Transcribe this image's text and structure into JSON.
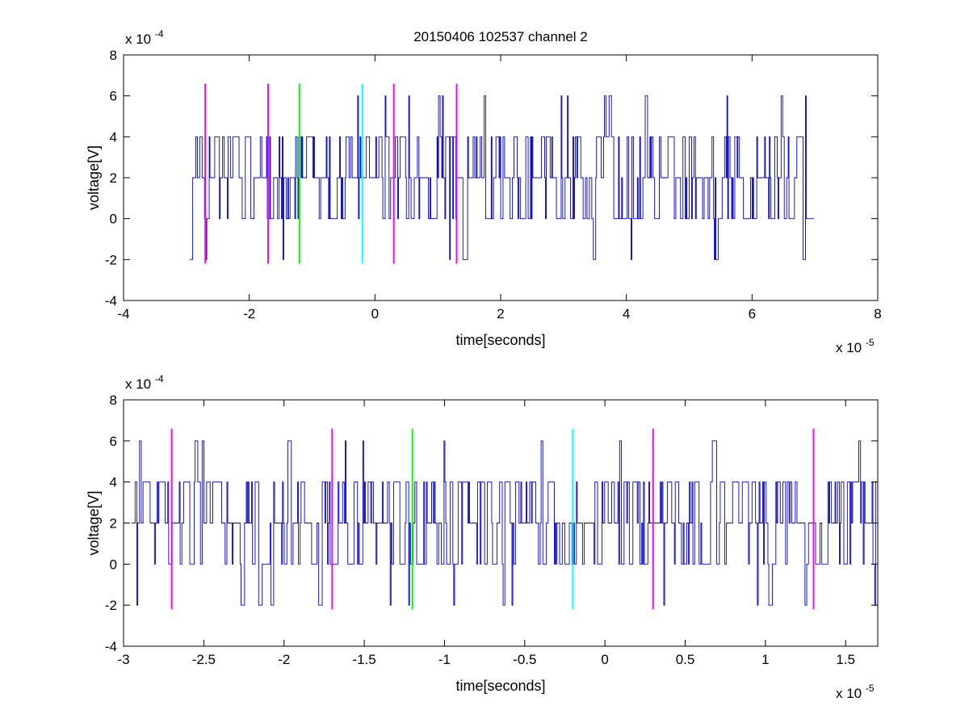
{
  "title": "20150406 102537 channel 2",
  "colors": {
    "signal": "#0000cc",
    "marker_magenta": "#ff00ff",
    "marker_green": "#00ff00",
    "marker_cyan": "#00ffff",
    "axes": "#000000",
    "background": "#ffffff"
  },
  "chart_data": [
    {
      "type": "line",
      "title": "20150406 102537 channel 2",
      "xlabel": "time[seconds]",
      "ylabel": "voltage[V]",
      "x_multiplier": "x 10",
      "x_multiplier_exp": "-5",
      "y_multiplier": "x 10",
      "y_multiplier_exp": "-4",
      "xlim": [
        -4,
        8
      ],
      "ylim": [
        -4,
        8
      ],
      "xticks": [
        -4,
        -2,
        0,
        2,
        4,
        6,
        8
      ],
      "xtick_labels": [
        "-4",
        "-2",
        "0",
        "2",
        "4",
        "6",
        "8"
      ],
      "yticks": [
        -4,
        -2,
        0,
        2,
        4,
        6,
        8
      ],
      "ytick_labels": [
        "-4",
        "-2",
        "0",
        "2",
        "4",
        "6",
        "8"
      ],
      "grid": false,
      "series": [
        {
          "kind": "dense_quantized_signal",
          "x_range": [
            -2.95,
            7.0
          ],
          "levels": [
            -2,
            0,
            2,
            4,
            6
          ],
          "baseline": 2
        }
      ],
      "markers": [
        {
          "x": -2.7,
          "y_range": [
            -2.2,
            6.6
          ],
          "color": "marker_magenta"
        },
        {
          "x": -1.7,
          "y_range": [
            -2.2,
            6.6
          ],
          "color": "marker_magenta"
        },
        {
          "x": -1.2,
          "y_range": [
            -2.2,
            6.6
          ],
          "color": "marker_green"
        },
        {
          "x": -0.2,
          "y_range": [
            -2.2,
            6.6
          ],
          "color": "marker_cyan"
        },
        {
          "x": 0.3,
          "y_range": [
            -2.2,
            6.6
          ],
          "color": "marker_magenta"
        },
        {
          "x": 1.3,
          "y_range": [
            -2.2,
            6.6
          ],
          "color": "marker_magenta"
        }
      ]
    },
    {
      "type": "line",
      "xlabel": "time[seconds]",
      "ylabel": "voltage[V]",
      "x_multiplier": "x 10",
      "x_multiplier_exp": "-5",
      "y_multiplier": "x 10",
      "y_multiplier_exp": "-4",
      "xlim": [
        -3.0,
        1.7
      ],
      "ylim": [
        -4,
        8
      ],
      "xticks": [
        -3,
        -2.5,
        -2,
        -1.5,
        -1,
        -0.5,
        0,
        0.5,
        1,
        1.5
      ],
      "xtick_labels": [
        "-3",
        "-2.5",
        "-2",
        "-1.5",
        "-1",
        "-0.5",
        "0",
        "0.5",
        "1",
        "1.5"
      ],
      "yticks": [
        -4,
        -2,
        0,
        2,
        4,
        6,
        8
      ],
      "ytick_labels": [
        "-4",
        "-2",
        "0",
        "2",
        "4",
        "6",
        "8"
      ],
      "grid": false,
      "series": [
        {
          "kind": "dense_quantized_signal",
          "x_range": [
            -2.95,
            1.7
          ],
          "levels": [
            -2,
            0,
            2,
            4,
            6
          ],
          "baseline": 2
        }
      ],
      "markers": [
        {
          "x": -2.7,
          "y_range": [
            -2.2,
            6.6
          ],
          "color": "marker_magenta"
        },
        {
          "x": -1.7,
          "y_range": [
            -2.2,
            6.6
          ],
          "color": "marker_magenta"
        },
        {
          "x": -1.2,
          "y_range": [
            -2.2,
            6.6
          ],
          "color": "marker_green"
        },
        {
          "x": -0.2,
          "y_range": [
            -2.2,
            6.6
          ],
          "color": "marker_cyan"
        },
        {
          "x": 0.3,
          "y_range": [
            -2.2,
            6.6
          ],
          "color": "marker_magenta"
        },
        {
          "x": 1.3,
          "y_range": [
            -2.2,
            6.6
          ],
          "color": "marker_magenta"
        }
      ]
    }
  ]
}
